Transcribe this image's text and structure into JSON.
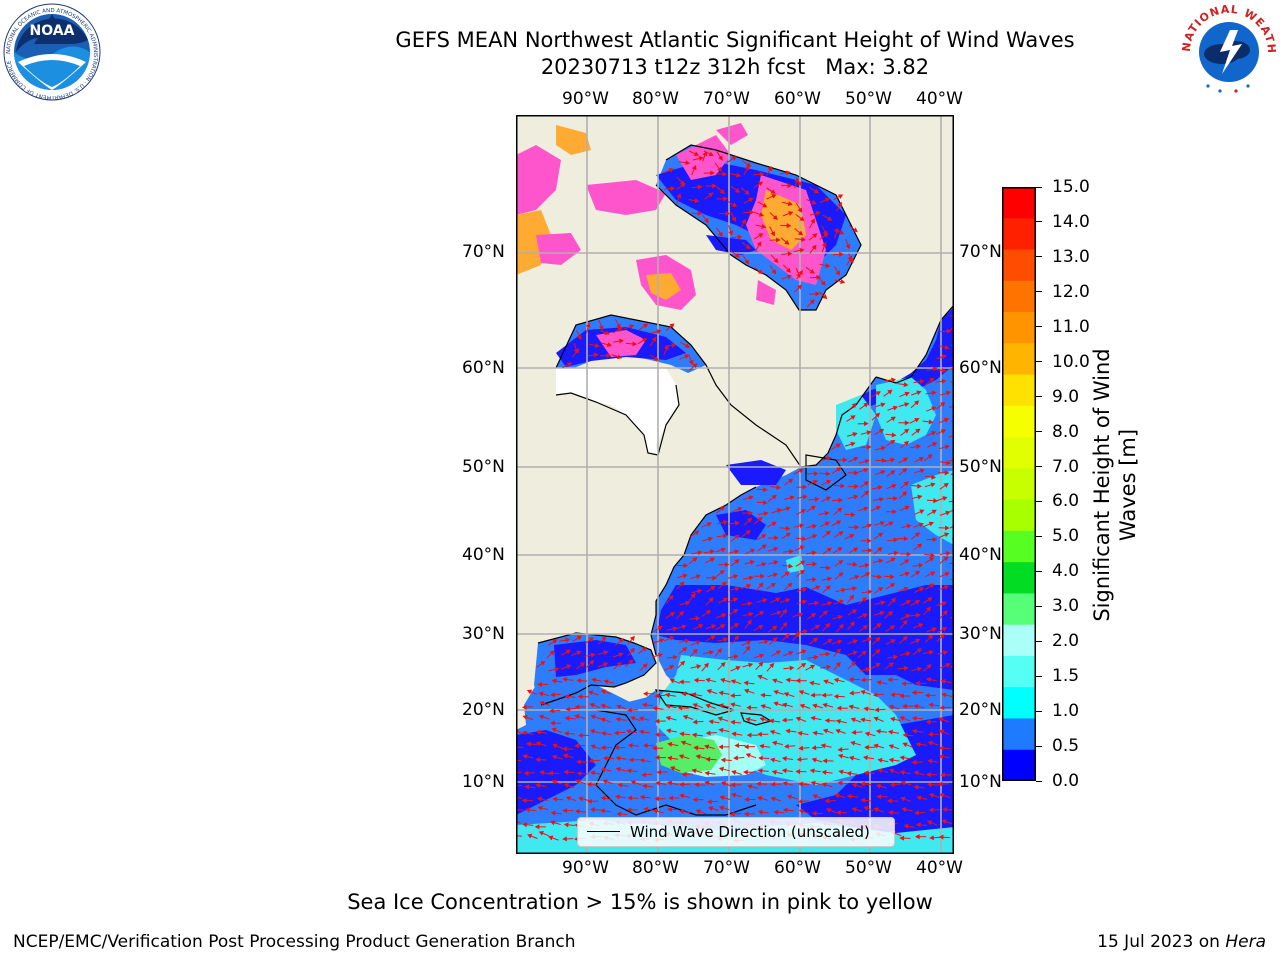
{
  "title": {
    "line1": "GEFS MEAN Northwest Atlantic Significant Height of Wind Waves",
    "line2": "20230713 t12z 312h fcst   Max: 3.82"
  },
  "logos": {
    "left": {
      "icon": "noaa-logo",
      "text": "NOAA",
      "ring_text": "NATIONAL OCEANIC AND ATMOSPHERIC ADMINISTRATION · U.S. DEPARTMENT OF COMMERCE"
    },
    "right": {
      "icon": "nws-logo",
      "ring_text": "NATIONAL WEATHER SERVICE"
    }
  },
  "map": {
    "lon_labels": [
      "90°W",
      "80°W",
      "70°W",
      "60°W",
      "50°W",
      "40°W"
    ],
    "lat_labels": [
      "70°N",
      "60°N",
      "50°N",
      "40°N",
      "30°N",
      "20°N",
      "10°N"
    ],
    "legend_label": "Wind Wave Direction (unscaled)",
    "colors": {
      "land": "#efedde",
      "ocean_deep": "#1a1aff",
      "ocean_mid": "#2f7dff",
      "ocean_light": "#40e8f0",
      "ocean_pale": "#a6fff4",
      "ocean_green": "#55ee66",
      "ice_pink": "#ff55cc",
      "ice_orange": "#ffaa33",
      "ice_yellow": "#ffee22",
      "arrows": "#ee1111",
      "grid": "#b0b0b0",
      "coast": "#000000"
    }
  },
  "colorbar": {
    "title": "Significant Height of Wind Waves [m]",
    "ticks": [
      "15.0",
      "14.0",
      "13.0",
      "12.0",
      "11.0",
      "10.0",
      "9.0",
      "8.0",
      "7.0",
      "6.0",
      "5.0",
      "4.0",
      "3.0",
      "2.0",
      "1.5",
      "1.0",
      "0.5",
      "0.0"
    ],
    "colors": [
      "#ff0000",
      "#ff2000",
      "#ff4c00",
      "#ff7400",
      "#ff9400",
      "#ffb400",
      "#ffe100",
      "#f5ff00",
      "#e2ff00",
      "#c7ff00",
      "#a8ff00",
      "#55ff22",
      "#00dd22",
      "#55ff77",
      "#aafff8",
      "#55fff4",
      "#00ffff",
      "#1e7bff",
      "#0000ff"
    ]
  },
  "note": "Sea Ice Concentration > 15% is shown in pink to yellow",
  "footer": {
    "left": "NCEP/EMC/Verification Post Processing Product Generation Branch",
    "right_prefix": "15 Jul 2023 on ",
    "right_machine": "Hera"
  }
}
